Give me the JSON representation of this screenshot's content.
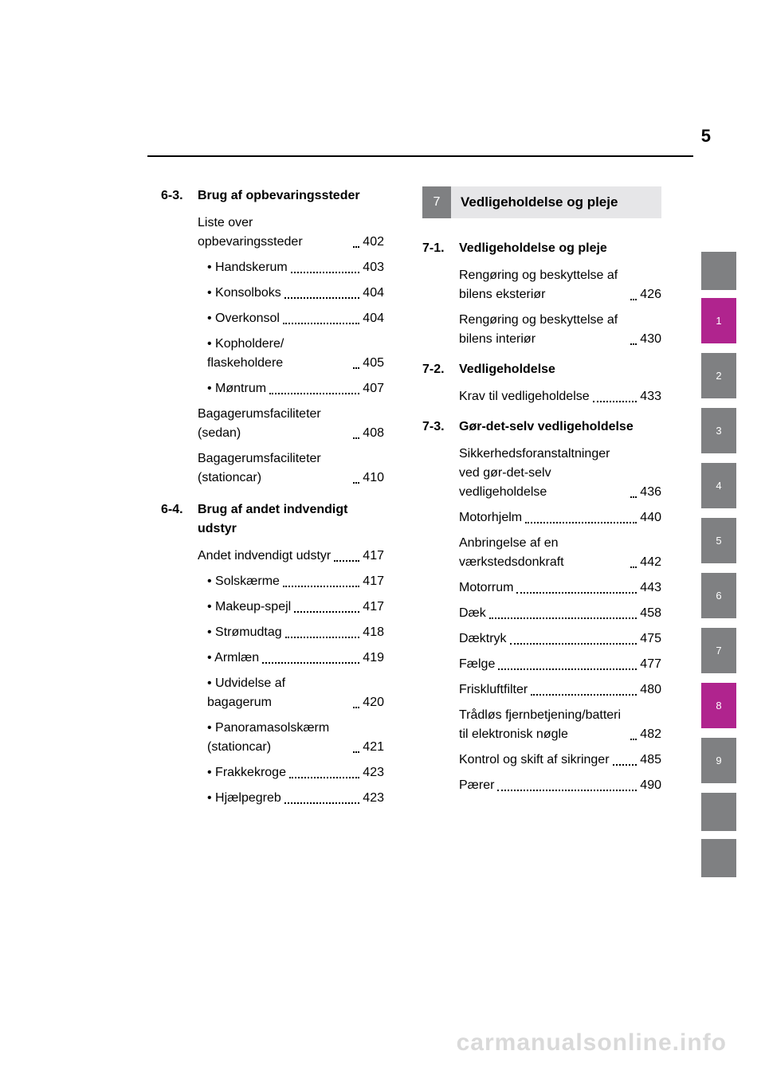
{
  "pageNumber": "5",
  "left": {
    "sections": [
      {
        "num": "6-3.",
        "title": "Brug af opbevaringssteder",
        "entries": [
          {
            "label": "Liste over opbevaringssteder",
            "page": "402"
          }
        ],
        "bullets": [
          {
            "label": "Handskerum",
            "page": "403"
          },
          {
            "label": "Konsolboks",
            "page": "404"
          },
          {
            "label": "Overkonsol",
            "page": "404"
          },
          {
            "label": "Kopholdere/\nflaskeholdere",
            "page": "405"
          },
          {
            "label": "Møntrum",
            "page": "407"
          }
        ],
        "entries2": [
          {
            "label": "Bagagerumsfaciliteter (sedan)",
            "page": "408"
          },
          {
            "label": "Bagagerumsfaciliteter (stationcar)",
            "page": "410"
          }
        ]
      },
      {
        "num": "6-4.",
        "title": "Brug af andet indvendigt udstyr",
        "entries": [
          {
            "label": "Andet indvendigt udstyr",
            "page": "417"
          }
        ],
        "bullets": [
          {
            "label": "Solskærme",
            "page": "417"
          },
          {
            "label": "Makeup-spejl",
            "page": "417"
          },
          {
            "label": "Strømudtag",
            "page": "418"
          },
          {
            "label": "Armlæn",
            "page": "419"
          },
          {
            "label": "Udvidelse af bagagerum",
            "page": "420"
          },
          {
            "label": "Panoramasolskærm (stationcar)",
            "page": "421"
          },
          {
            "label": "Frakkekroge",
            "page": "423"
          },
          {
            "label": "Hjælpegreb",
            "page": "423"
          }
        ]
      }
    ]
  },
  "right": {
    "chapterNum": "7",
    "chapterTitle": "Vedligeholdelse og pleje",
    "sections": [
      {
        "num": "7-1.",
        "title": "Vedligeholdelse og pleje",
        "entries": [
          {
            "label": "Rengøring og beskyttelse af bilens eksteriør",
            "page": "426"
          },
          {
            "label": "Rengøring og beskyttelse af bilens interiør",
            "page": "430"
          }
        ]
      },
      {
        "num": "7-2.",
        "title": "Vedligeholdelse",
        "entries": [
          {
            "label": "Krav til vedligeholdelse",
            "page": "433"
          }
        ]
      },
      {
        "num": "7-3.",
        "title": "Gør-det-selv vedligeholdelse",
        "entries": [
          {
            "label": "Sikkerhedsforanstaltninger ved gør-det-selv vedligeholdelse",
            "page": "436"
          },
          {
            "label": "Motorhjelm",
            "page": "440"
          },
          {
            "label": "Anbringelse af en værkstedsdonkraft",
            "page": "442"
          },
          {
            "label": "Motorrum",
            "page": "443"
          },
          {
            "label": "Dæk",
            "page": "458"
          },
          {
            "label": "Dæktryk",
            "page": "475"
          },
          {
            "label": "Fælge",
            "page": "477"
          },
          {
            "label": "Friskluftfilter",
            "page": "480"
          },
          {
            "label": "Trådløs fjernbetjening/batteri til elektronisk nøgle",
            "page": "482"
          },
          {
            "label": "Kontrol og skift af sikringer",
            "page": "485"
          },
          {
            "label": "Pærer",
            "page": "490"
          }
        ]
      }
    ]
  },
  "tabs": [
    {
      "label": "",
      "active": false
    },
    {
      "label": "1",
      "active": true
    },
    {
      "label": "2",
      "active": false
    },
    {
      "label": "3",
      "active": false
    },
    {
      "label": "4",
      "active": false
    },
    {
      "label": "5",
      "active": false
    },
    {
      "label": "6",
      "active": false
    },
    {
      "label": "7",
      "active": false
    },
    {
      "label": "8",
      "active": true
    },
    {
      "label": "9",
      "active": false
    },
    {
      "label": "",
      "active": false
    },
    {
      "label": "",
      "active": false
    }
  ],
  "watermark": "carmanualsonline.info",
  "colors": {
    "tabGrey": "#7f8082",
    "tabActive": "#b0248e",
    "chapterTitleBg": "#e6e6e8",
    "watermark": "#d9d9d9"
  }
}
